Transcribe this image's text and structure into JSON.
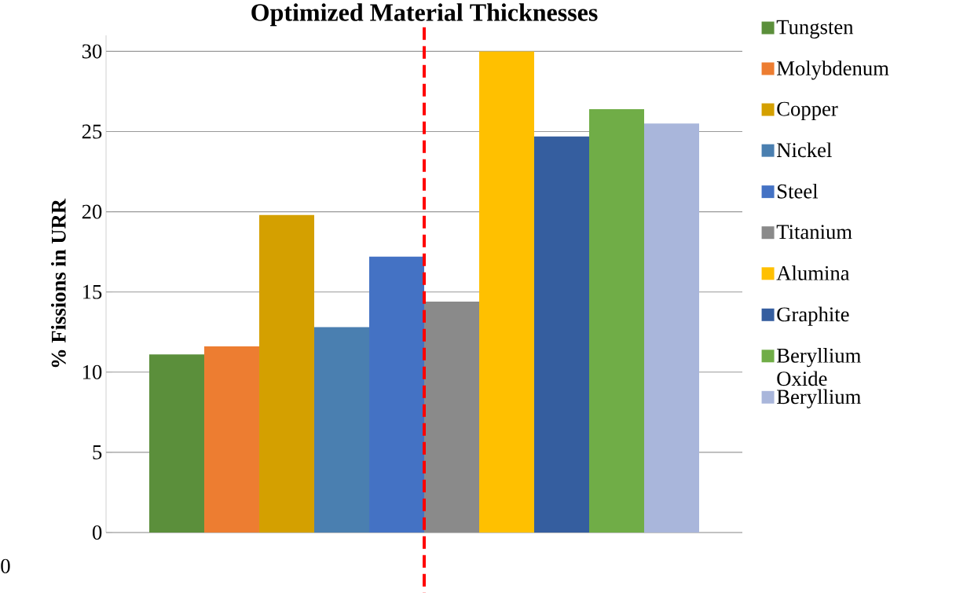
{
  "chart_data": {
    "type": "bar",
    "title": "Optimized Material Thicknesses",
    "ylabel": "% Fissions in URR",
    "categories": [
      null
    ],
    "series": [
      {
        "name": "Tungsten",
        "color": "#5b8f3b",
        "values": [
          11.1
        ]
      },
      {
        "name": "Molybdenum",
        "color": "#ed7d31",
        "values": [
          11.6
        ]
      },
      {
        "name": "Copper",
        "color": "#d4a000",
        "values": [
          19.8
        ]
      },
      {
        "name": "Nickel",
        "color": "#4a7fb0",
        "values": [
          12.8
        ]
      },
      {
        "name": "Steel",
        "color": "#4472c4",
        "values": [
          17.2
        ]
      },
      {
        "name": "Titanium",
        "color": "#8a8a8a",
        "values": [
          14.4
        ]
      },
      {
        "name": "Alumina",
        "color": "#ffc000",
        "values": [
          30.0
        ]
      },
      {
        "name": "Graphite",
        "color": "#355e9f",
        "values": [
          24.7
        ]
      },
      {
        "name": "Beryllium Oxide",
        "color": "#70ad47",
        "values": [
          26.4
        ]
      },
      {
        "name": "Beryllium",
        "color": "#a9b6db",
        "values": [
          25.5
        ]
      }
    ],
    "ylim": [
      0,
      31
    ],
    "yticks": [
      0,
      5,
      10,
      15,
      20,
      25,
      30
    ],
    "grid": "y",
    "legend": "right",
    "annotations": [
      "0"
    ]
  }
}
